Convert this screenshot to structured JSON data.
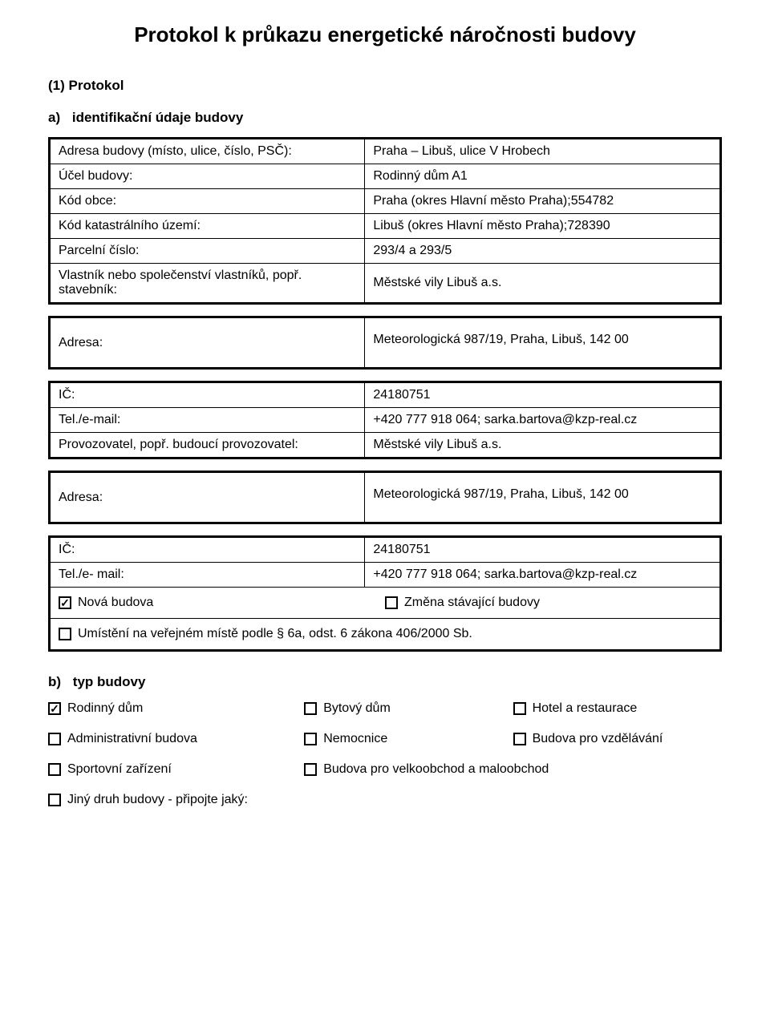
{
  "doc_title": "Protokol k průkazu energetické náročnosti budovy",
  "section1_label": "(1) Protokol",
  "section_a": {
    "letter": "a)",
    "label": "identifikační údaje budovy"
  },
  "table_a": {
    "rows": [
      {
        "key": "Adresa budovy (místo, ulice, číslo, PSČ):",
        "val": "Praha – Libuš, ulice V Hrobech"
      },
      {
        "key": "Účel budovy:",
        "val": "Rodinný dům A1"
      },
      {
        "key": "Kód obce:",
        "val": "Praha (okres Hlavní město Praha);554782"
      },
      {
        "key": "Kód katastrálního území:",
        "val": "Libuš (okres Hlavní město Praha);728390"
      },
      {
        "key": "Parcelní číslo:",
        "val": "293/4 a 293/5"
      },
      {
        "key": "Vlastník nebo společenství vlastníků, popř. stavebník:",
        "val": "Městské vily Libuš a.s."
      }
    ]
  },
  "table_b": {
    "rows": [
      {
        "key": "Adresa:",
        "val": "Meteorologická 987/19, Praha, Libuš, 142 00",
        "tall": true
      }
    ]
  },
  "table_c": {
    "rows": [
      {
        "key": "IČ:",
        "val": "24180751"
      },
      {
        "key": "Tel./e-mail:",
        "val": "+420 777 918 064; sarka.bartova@kzp-real.cz"
      },
      {
        "key": "Provozovatel, popř. budoucí provozovatel:",
        "val": "Městské vily Libuš a.s."
      }
    ]
  },
  "table_d": {
    "rows": [
      {
        "key": "Adresa:",
        "val": "Meteorologická 987/19, Praha, Libuš, 142 00",
        "tall": true
      }
    ]
  },
  "table_e": {
    "rows": [
      {
        "key": "IČ:",
        "val": "24180751"
      },
      {
        "key": "Tel./e- mail:",
        "val": "+420 777 918 064; sarka.bartova@kzp-real.cz"
      }
    ],
    "cb_row1": [
      {
        "label": "Nová budova",
        "checked": true
      },
      {
        "label": "Změna stávající budovy",
        "checked": false
      }
    ],
    "cb_row2": [
      {
        "label": "Umístění na veřejném místě podle § 6a, odst. 6 zákona 406/2000 Sb.",
        "checked": false
      }
    ]
  },
  "section_b": {
    "letter": "b)",
    "label": "typ budovy",
    "rows": [
      [
        {
          "label": "Rodinný dům",
          "checked": true
        },
        {
          "label": "Bytový dům",
          "checked": false
        },
        {
          "label": "Hotel a restaurace",
          "checked": false
        }
      ],
      [
        {
          "label": "Administrativní budova",
          "checked": false
        },
        {
          "label": "Nemocnice",
          "checked": false
        },
        {
          "label": "Budova pro vzdělávání",
          "checked": false
        }
      ],
      [
        {
          "label": "Sportovní zařízení",
          "checked": false
        },
        {
          "label": "Budova pro velkoobchod a maloobchod",
          "checked": false,
          "span": true
        }
      ],
      [
        {
          "label": "Jiný druh budovy - připojte jaký:",
          "checked": false
        }
      ]
    ]
  }
}
